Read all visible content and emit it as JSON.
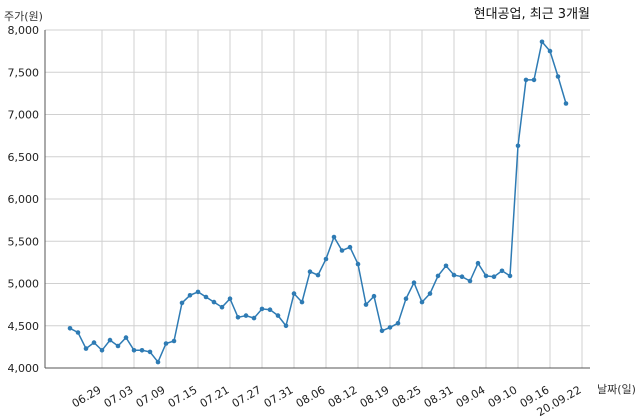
{
  "chart_data": {
    "type": "line",
    "title": "현대공업, 최근 3개월",
    "ylabel": "주가(원)",
    "xlabel": "날짜(일)",
    "ylim": [
      4000,
      8000
    ],
    "yticks": [
      "4,000",
      "4,500",
      "5,000",
      "5,500",
      "6,000",
      "6,500",
      "7,000",
      "7,500",
      "8,000"
    ],
    "ytick_values": [
      4000,
      4500,
      5000,
      5500,
      6000,
      6500,
      7000,
      7500,
      8000
    ],
    "xtick_labels": [
      "06.29",
      "07.03",
      "07.09",
      "07.15",
      "07.21",
      "07.27",
      "07.31",
      "08.06",
      "08.12",
      "08.19",
      "08.25",
      "08.31",
      "09.04",
      "09.10",
      "09.16",
      "20.09.22"
    ],
    "xtick_index": [
      4,
      8,
      12,
      16,
      20,
      24,
      28,
      32,
      36,
      40,
      44,
      48,
      52,
      56,
      60,
      64
    ],
    "grid": true,
    "line_color": "#2e7bb4",
    "series": [
      {
        "values": [
          4470,
          4420,
          4230,
          4300,
          4210,
          4330,
          4260,
          4360,
          4210,
          4210,
          4190,
          4070,
          4290,
          4320,
          4770,
          4860,
          4900,
          4840,
          4780,
          4720,
          4820,
          4600,
          4620,
          4590,
          4700,
          4690,
          4620,
          4500,
          4880,
          4780,
          5140,
          5100,
          5290,
          5550,
          5390,
          5430,
          5230,
          4750,
          4850,
          4440,
          4480,
          4530,
          4820,
          5010,
          4780,
          4880,
          5090,
          5210,
          5100,
          5080,
          5030,
          5240,
          5090,
          5080,
          5150,
          5090,
          6630,
          7410,
          7410,
          7860,
          7750,
          7450,
          7130
        ]
      }
    ]
  }
}
